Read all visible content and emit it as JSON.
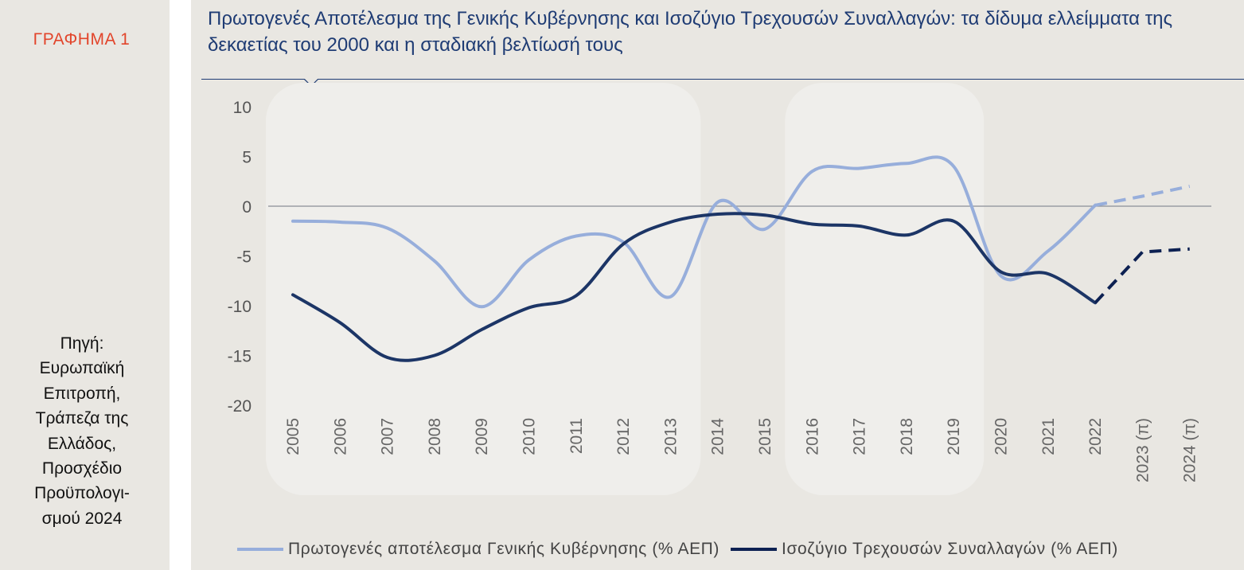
{
  "sidebar": {
    "figure_label": "ΓΡΑΦΗΜΑ 1",
    "source_lines": [
      "Πηγή:",
      "Ευρωπαϊκή",
      "Επιτροπή,",
      "Τράπεζα της",
      "Ελλάδος,",
      "Προσχέδιο",
      "Προϋπολογι-",
      "σμού 2024"
    ]
  },
  "colors": {
    "background": "#e9e7e2",
    "highlight": "#efeeeb",
    "primary_balance": "#97aedb",
    "current_account": "#1c3566",
    "current_account_projection": "#0d2152",
    "title": "#1f3c74",
    "figure_label": "#e2452b"
  },
  "chart_data": {
    "type": "line",
    "title": "Πρωτογενές Αποτέλεσμα της Γενικής Κυβέρνησης και Ισοζύγιο Τρεχουσών Συναλλαγών: τα δίδυμα ελλείμματα της δεκαετίας του 2000 και η σταδιακή βελτίωσή τους",
    "categories": [
      "2005",
      "2006",
      "2007",
      "2008",
      "2009",
      "2010",
      "2011",
      "2012",
      "2013",
      "2014",
      "2015",
      "2016",
      "2017",
      "2018",
      "2019",
      "2020",
      "2021",
      "2022",
      "2023 (π)",
      "2024 (π)"
    ],
    "ylim": [
      -20,
      10
    ],
    "yticks": [
      10,
      5,
      0,
      -5,
      -10,
      -15,
      -20
    ],
    "projection_start_index": 17,
    "highlighted_ranges": [
      [
        "2005",
        "2013"
      ],
      [
        "2016",
        "2019"
      ]
    ],
    "series": [
      {
        "name": "Πρωτογενές αποτέλεσμα Γενικής Κυβέρνησης (% ΑΕΠ)",
        "values": [
          -1.5,
          -1.6,
          -2.2,
          -5.5,
          -10.1,
          -5.4,
          -3.0,
          -3.6,
          -9.1,
          0.4,
          -2.3,
          3.5,
          3.8,
          4.3,
          4.0,
          -7.0,
          -4.5,
          0.1,
          1.0,
          2.0
        ]
      },
      {
        "name": "Ισοζύγιο Τρεχουσών Συναλλαγών (% ΑΕΠ)",
        "values": [
          -8.9,
          -11.7,
          -15.2,
          -15.0,
          -12.4,
          -10.2,
          -9.0,
          -3.8,
          -1.6,
          -0.8,
          -0.9,
          -1.8,
          -2.0,
          -2.9,
          -1.5,
          -6.6,
          -6.8,
          -9.7,
          -4.6,
          -4.3
        ]
      }
    ]
  }
}
